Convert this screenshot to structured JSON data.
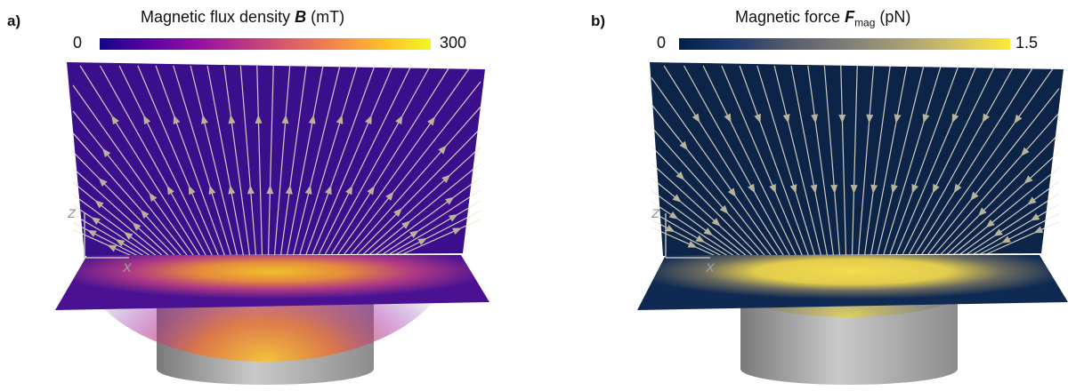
{
  "panel_a": {
    "letter": "a)",
    "title_pre": "Magnetic flux density ",
    "title_symbol": "B",
    "title_sub": "",
    "title_unit": " (mT)",
    "scale_min": "0",
    "scale_max": "300",
    "axis_z": "z",
    "axis_x": "x",
    "colors": {
      "bg": "#3b0f8c",
      "hot": "#f3d23a",
      "field_line": "#efe8d0",
      "colormap": "plasma"
    }
  },
  "panel_b": {
    "letter": "b)",
    "title_pre": "Magnetic force ",
    "title_symbol": "F",
    "title_sub": "mag",
    "title_unit": " (pN)",
    "scale_min": "0",
    "scale_max": "1.5",
    "axis_z": "z",
    "axis_x": "x",
    "colors": {
      "bg": "#0d2449",
      "hot": "#f3df55",
      "field_line": "#efe8d0",
      "colormap": "cividis"
    }
  }
}
